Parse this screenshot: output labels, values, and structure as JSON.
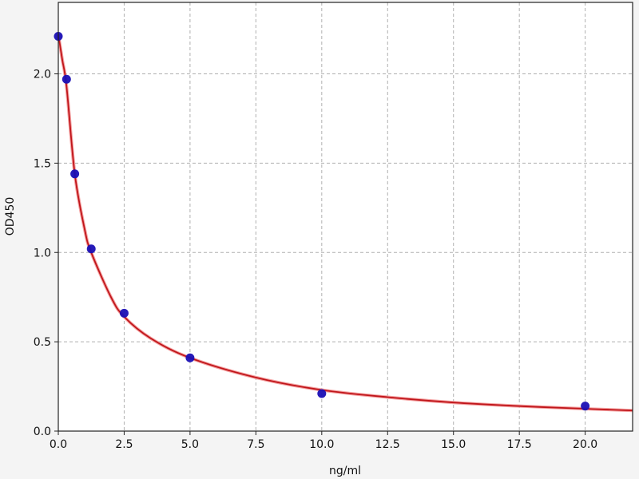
{
  "chart_data": {
    "type": "scatter",
    "title": "",
    "xlabel": "ng/ml",
    "ylabel": "OD450",
    "xlim": [
      0,
      21.8
    ],
    "ylim": [
      0,
      2.4
    ],
    "grid": true,
    "xticks": [
      0,
      2.5,
      5,
      7.5,
      10,
      12.5,
      15,
      17.5,
      20
    ],
    "xtick_labels": [
      "0.0",
      "2.5",
      "5.0",
      "7.5",
      "10.0",
      "12.5",
      "15.0",
      "17.5",
      "20.0"
    ],
    "yticks": [
      0,
      0.5,
      1,
      1.5,
      2
    ],
    "ytick_labels": [
      "0.0",
      "0.5",
      "1.0",
      "1.5",
      "2.0"
    ],
    "points": {
      "x": [
        0,
        0.3125,
        0.625,
        1.25,
        2.5,
        5,
        10,
        20
      ],
      "y": [
        2.21,
        1.97,
        1.44,
        1.02,
        0.66,
        0.41,
        0.21,
        0.14
      ],
      "color": "#1a0fb5"
    },
    "fit_curve": {
      "x": [
        0,
        0.15,
        0.3125,
        0.625,
        1,
        1.25,
        2,
        2.5,
        3.5,
        5,
        7.5,
        10,
        12.5,
        15,
        17.5,
        20,
        21.8
      ],
      "y": [
        2.22,
        2.08,
        1.93,
        1.44,
        1.13,
        1.0,
        0.75,
        0.64,
        0.52,
        0.41,
        0.3,
        0.23,
        0.19,
        0.16,
        0.14,
        0.125,
        0.115
      ],
      "color": "#c0161b"
    }
  }
}
